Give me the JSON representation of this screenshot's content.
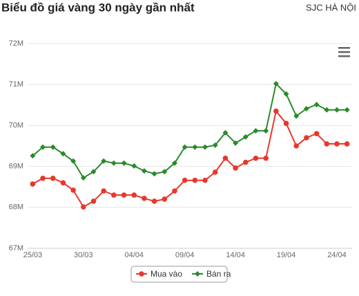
{
  "chart_data": {
    "type": "line",
    "title": "Biểu đồ giá vàng 30 ngày gần nhất",
    "subtitle": "SJC HÀ NỘI",
    "categories": [
      "25/03",
      null,
      null,
      null,
      null,
      "30/03",
      null,
      null,
      null,
      null,
      "04/04",
      null,
      null,
      null,
      null,
      "09/04",
      null,
      null,
      null,
      null,
      "14/04",
      null,
      null,
      null,
      null,
      "19/04",
      null,
      null,
      null,
      null,
      "24/04",
      null
    ],
    "series": [
      {
        "name": "Mua vào",
        "color": "#e8382b",
        "values": [
          68.57,
          68.71,
          68.71,
          68.6,
          68.42,
          68.01,
          68.15,
          68.4,
          68.3,
          68.3,
          68.3,
          68.22,
          68.15,
          68.2,
          68.4,
          68.66,
          68.66,
          68.66,
          68.86,
          69.2,
          68.96,
          69.1,
          69.2,
          69.2,
          70.35,
          70.05,
          69.5,
          69.7,
          69.8,
          69.55,
          69.55,
          69.55
        ]
      },
      {
        "name": "Bán ra",
        "color": "#2a8a2a",
        "values": [
          69.26,
          69.47,
          69.47,
          69.31,
          69.13,
          68.72,
          68.87,
          69.13,
          69.08,
          69.08,
          69.01,
          68.89,
          68.82,
          68.87,
          69.08,
          69.47,
          69.47,
          69.47,
          69.52,
          69.82,
          69.57,
          69.72,
          69.87,
          69.87,
          71.02,
          70.77,
          70.23,
          70.41,
          70.51,
          70.38,
          70.38,
          70.38
        ]
      }
    ],
    "ylim": [
      67,
      72
    ],
    "yticks": [
      {
        "value": 67,
        "label": "67M"
      },
      {
        "value": 68,
        "label": "68M"
      },
      {
        "value": 69,
        "label": "69M"
      },
      {
        "value": 70,
        "label": "70M"
      },
      {
        "value": 71,
        "label": "71M"
      },
      {
        "value": 72,
        "label": "72M"
      }
    ],
    "grid": true
  }
}
